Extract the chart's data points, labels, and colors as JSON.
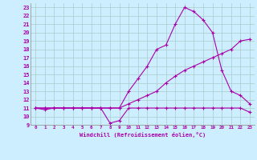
{
  "xlabel": "Windchill (Refroidissement éolien,°C)",
  "bg_color": "#cceeff",
  "line_color": "#aa00aa",
  "grid_color": "#aacccc",
  "xlim": [
    -0.5,
    23.5
  ],
  "ylim": [
    9,
    23.5
  ],
  "xticks": [
    0,
    1,
    2,
    3,
    4,
    5,
    6,
    7,
    8,
    9,
    10,
    11,
    12,
    13,
    14,
    15,
    16,
    17,
    18,
    19,
    20,
    21,
    22,
    23
  ],
  "yticks": [
    9,
    10,
    11,
    12,
    13,
    14,
    15,
    16,
    17,
    18,
    19,
    20,
    21,
    22,
    23
  ],
  "line1_x": [
    0,
    1,
    2,
    3,
    4,
    5,
    6,
    7,
    8,
    9,
    10,
    11,
    12,
    13,
    14,
    15,
    16,
    17,
    18,
    19,
    20,
    21,
    22,
    23
  ],
  "line1_y": [
    11,
    10.8,
    11,
    11,
    11,
    11,
    11,
    11,
    9.2,
    9.5,
    11,
    11,
    11,
    11,
    11,
    11,
    11,
    11,
    11,
    11,
    11,
    11,
    11,
    10.5
  ],
  "line2_x": [
    0,
    1,
    2,
    3,
    4,
    5,
    6,
    7,
    8,
    9,
    10,
    11,
    12,
    13,
    14,
    15,
    16,
    17,
    18,
    19,
    20,
    21,
    22,
    23
  ],
  "line2_y": [
    11,
    11,
    11,
    11,
    11,
    11,
    11,
    11,
    11,
    11,
    11.5,
    12,
    12.5,
    13,
    14,
    14.8,
    15.5,
    16,
    16.5,
    17,
    17.5,
    18,
    19,
    19.2
  ],
  "line3_x": [
    0,
    1,
    2,
    3,
    4,
    5,
    6,
    7,
    8,
    9,
    10,
    11,
    12,
    13,
    14,
    15,
    16,
    17,
    18,
    19,
    20,
    21,
    22,
    23
  ],
  "line3_y": [
    11,
    11,
    11,
    11,
    11,
    11,
    11,
    11,
    11,
    11,
    13,
    14.5,
    16,
    18,
    18.5,
    21,
    23,
    22.5,
    21.5,
    20,
    15.5,
    13,
    12.5,
    11.5
  ]
}
